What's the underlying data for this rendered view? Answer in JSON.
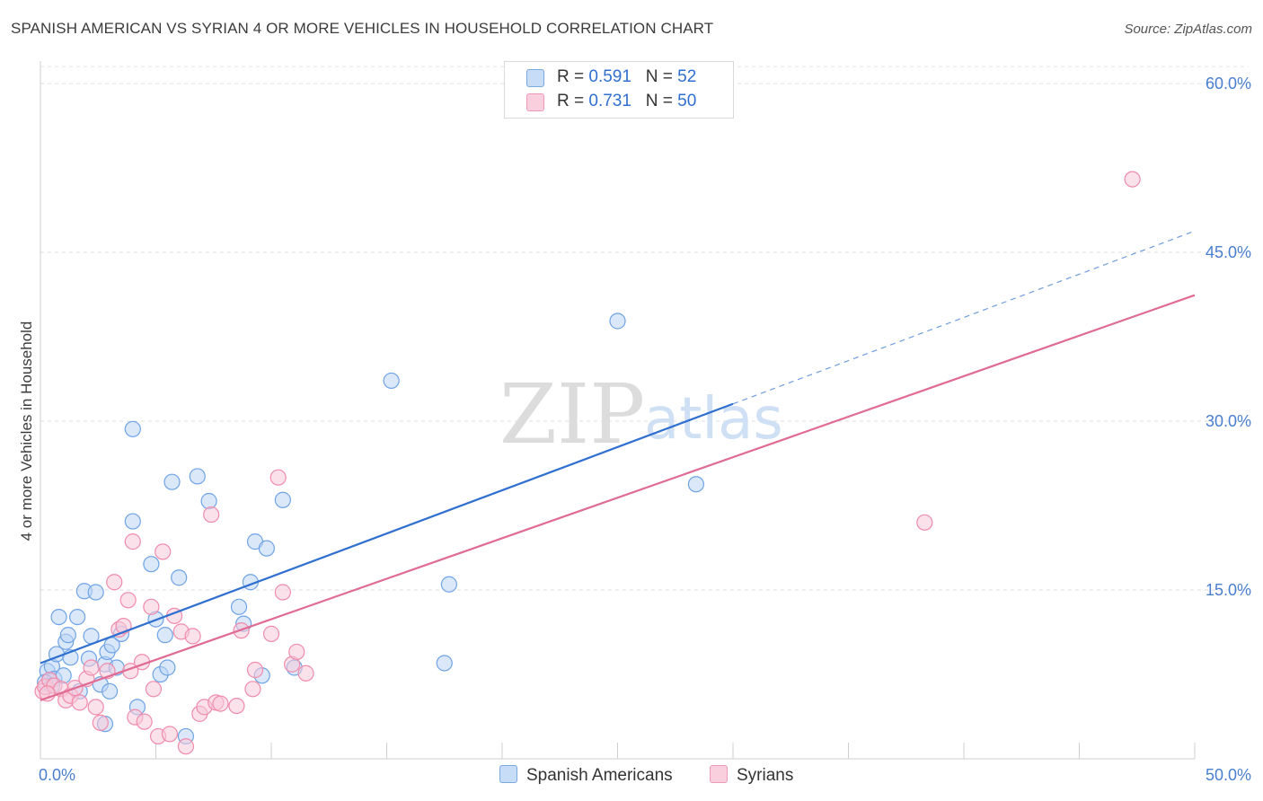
{
  "title": "SPANISH AMERICAN VS SYRIAN 4 OR MORE VEHICLES IN HOUSEHOLD CORRELATION CHART",
  "source": "Source: ZipAtlas.com",
  "watermark": {
    "zip": "ZIP",
    "atlas": "atlas"
  },
  "legend": {
    "rows": [
      {
        "r_label": "R = ",
        "r_value": "0.591",
        "n_label": "N = ",
        "n_value": "52",
        "color": "#a9c8f0"
      },
      {
        "r_label": "R = ",
        "r_value": "0.731",
        "n_label": "N = ",
        "n_value": "50",
        "color": "#f6b6cb"
      }
    ]
  },
  "bottom_legend": [
    {
      "label": "Spanish Americans",
      "color": "#a9c8f0"
    },
    {
      "label": "Syrians",
      "color": "#f6b6cb"
    }
  ],
  "chart_data": {
    "type": "scatter",
    "title": "SPANISH AMERICAN VS SYRIAN 4 OR MORE VEHICLES IN HOUSEHOLD CORRELATION CHART",
    "xlabel": "",
    "ylabel": "4 or more Vehicles in Household",
    "xlim": [
      0,
      50
    ],
    "ylim": [
      0,
      62
    ],
    "x_tick_labels": [
      "0.0%",
      "50.0%"
    ],
    "y_ticks": [
      15,
      30,
      45,
      60
    ],
    "y_tick_labels": [
      "15.0%",
      "30.0%",
      "45.0%",
      "60.0%"
    ],
    "grid": true,
    "series": [
      {
        "name": "Spanish Americans",
        "color": "#6fa3e6",
        "fill": "#bcd5f5",
        "points": [
          [
            0.3,
            7.8
          ],
          [
            0.4,
            7.0
          ],
          [
            0.5,
            8.2
          ],
          [
            0.6,
            7.1
          ],
          [
            0.7,
            9.3
          ],
          [
            0.8,
            12.6
          ],
          [
            1.0,
            7.4
          ],
          [
            1.1,
            10.4
          ],
          [
            1.2,
            11.0
          ],
          [
            1.3,
            9.0
          ],
          [
            1.6,
            12.6
          ],
          [
            1.7,
            6.0
          ],
          [
            1.9,
            14.9
          ],
          [
            2.1,
            8.9
          ],
          [
            2.2,
            10.9
          ],
          [
            2.4,
            14.8
          ],
          [
            2.6,
            6.6
          ],
          [
            2.8,
            8.4
          ],
          [
            2.9,
            9.5
          ],
          [
            3.0,
            6.0
          ],
          [
            3.1,
            10.1
          ],
          [
            3.3,
            8.1
          ],
          [
            3.5,
            11.1
          ],
          [
            2.8,
            3.1
          ],
          [
            4.0,
            29.3
          ],
          [
            4.0,
            21.1
          ],
          [
            4.2,
            4.6
          ],
          [
            4.8,
            17.3
          ],
          [
            5.0,
            12.4
          ],
          [
            5.2,
            7.5
          ],
          [
            5.4,
            11.0
          ],
          [
            5.5,
            8.1
          ],
          [
            5.7,
            24.6
          ],
          [
            6.0,
            16.1
          ],
          [
            6.3,
            2.0
          ],
          [
            6.8,
            25.1
          ],
          [
            7.3,
            22.9
          ],
          [
            8.6,
            13.5
          ],
          [
            8.8,
            12.0
          ],
          [
            9.1,
            15.7
          ],
          [
            9.3,
            19.3
          ],
          [
            9.6,
            7.4
          ],
          [
            9.8,
            18.7
          ],
          [
            10.5,
            23.0
          ],
          [
            11.0,
            8.1
          ],
          [
            15.2,
            33.6
          ],
          [
            17.5,
            8.5
          ],
          [
            17.7,
            15.5
          ],
          [
            25.0,
            38.9
          ],
          [
            28.4,
            24.4
          ],
          [
            0.2,
            6.8
          ],
          [
            0.5,
            6.5
          ]
        ]
      },
      {
        "name": "Syrians",
        "color": "#f08bab",
        "fill": "#f8c8d8",
        "points": [
          [
            0.1,
            6.0
          ],
          [
            0.2,
            6.4
          ],
          [
            0.4,
            7.0
          ],
          [
            0.6,
            6.5
          ],
          [
            0.9,
            6.2
          ],
          [
            1.1,
            5.2
          ],
          [
            1.3,
            5.6
          ],
          [
            1.5,
            6.3
          ],
          [
            1.7,
            5.0
          ],
          [
            2.0,
            7.1
          ],
          [
            2.2,
            8.1
          ],
          [
            2.4,
            4.6
          ],
          [
            2.6,
            3.2
          ],
          [
            2.9,
            7.8
          ],
          [
            3.2,
            15.7
          ],
          [
            3.4,
            11.5
          ],
          [
            3.6,
            11.8
          ],
          [
            3.8,
            14.1
          ],
          [
            3.9,
            7.8
          ],
          [
            4.0,
            19.3
          ],
          [
            4.1,
            3.7
          ],
          [
            4.4,
            8.6
          ],
          [
            4.5,
            3.3
          ],
          [
            4.8,
            13.5
          ],
          [
            4.9,
            6.2
          ],
          [
            5.1,
            2.0
          ],
          [
            5.3,
            18.4
          ],
          [
            5.6,
            2.2
          ],
          [
            5.8,
            12.7
          ],
          [
            6.1,
            11.3
          ],
          [
            6.3,
            1.1
          ],
          [
            6.6,
            10.9
          ],
          [
            6.9,
            4.0
          ],
          [
            7.1,
            4.6
          ],
          [
            7.4,
            21.7
          ],
          [
            7.6,
            5.0
          ],
          [
            7.8,
            4.9
          ],
          [
            8.5,
            4.7
          ],
          [
            8.7,
            11.4
          ],
          [
            9.2,
            6.2
          ],
          [
            9.3,
            7.9
          ],
          [
            10.0,
            11.1
          ],
          [
            10.3,
            25.0
          ],
          [
            10.5,
            14.8
          ],
          [
            10.9,
            8.4
          ],
          [
            11.1,
            9.5
          ],
          [
            11.5,
            7.6
          ],
          [
            38.3,
            21.0
          ],
          [
            47.3,
            51.5
          ],
          [
            0.3,
            5.8
          ]
        ]
      }
    ],
    "trend_lines": [
      {
        "series": "Spanish Americans",
        "x_start": 0,
        "y_start": 8.5,
        "x_solid_end": 30,
        "x_dashed_end": 50,
        "slope": 0.768
      },
      {
        "series": "Syrians",
        "x_start": 0,
        "y_start": 5.2,
        "x_end": 50,
        "slope": 0.72
      }
    ]
  }
}
